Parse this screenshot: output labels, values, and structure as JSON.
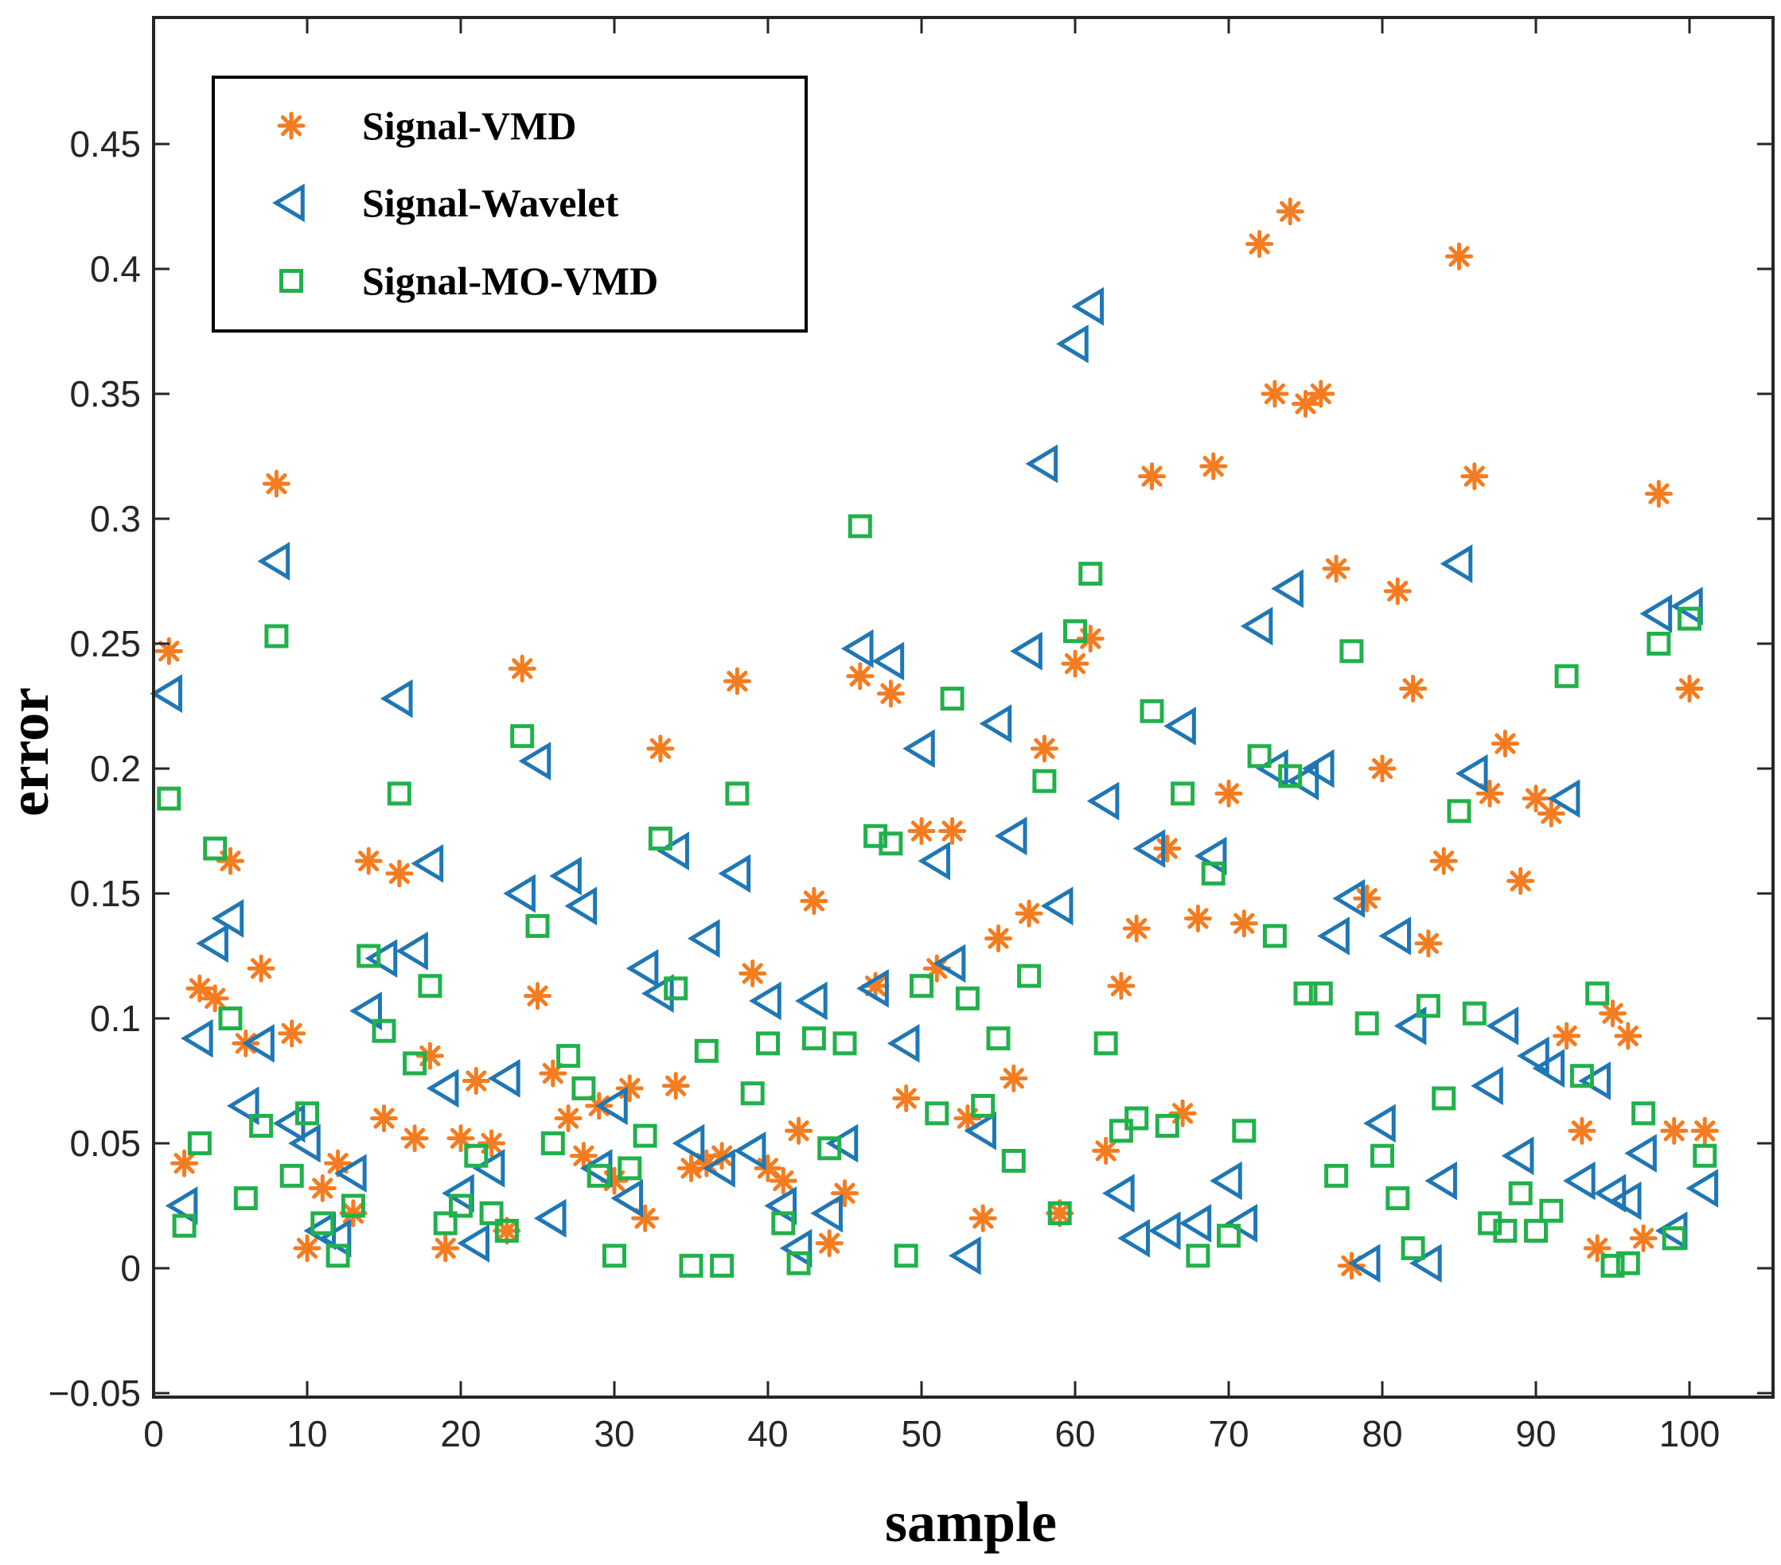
{
  "chart_data": {
    "type": "scatter",
    "title": "",
    "xlabel": "sample",
    "ylabel": "error",
    "xlim": [
      0,
      103
    ],
    "ylim": [
      -0.05,
      0.5
    ],
    "x_ticks": [
      0,
      10,
      20,
      30,
      40,
      50,
      60,
      70,
      80,
      90,
      100
    ],
    "x_tick_labels": [
      "0",
      "10",
      "20",
      "30",
      "40",
      "50",
      "60",
      "70",
      "80",
      "90",
      "100"
    ],
    "y_ticks": [
      -0.05,
      0,
      0.05,
      0.1,
      0.15,
      0.2,
      0.25,
      0.3,
      0.35,
      0.4,
      0.45
    ],
    "y_tick_labels": [
      "−0.05",
      "0",
      "0.05",
      "0.1",
      "0.15",
      "0.2",
      "0.25",
      "0.3",
      "0.35",
      "0.4",
      "0.45"
    ],
    "grid": false,
    "legend_position": "top-left",
    "series": [
      {
        "name": "Signal-VMD",
        "marker": "asterisk",
        "color": "#F47C20",
        "x": [
          1,
          2,
          3,
          4,
          5,
          6,
          7,
          8,
          9,
          10,
          11,
          12,
          13,
          14,
          15,
          16,
          17,
          18,
          19,
          20,
          21,
          22,
          23,
          24,
          25,
          26,
          27,
          28,
          29,
          30,
          31,
          32,
          33,
          34,
          35,
          36,
          37,
          38,
          39,
          40,
          41,
          42,
          43,
          44,
          45,
          46,
          47,
          48,
          49,
          50,
          51,
          52,
          53,
          54,
          55,
          56,
          57,
          58,
          59,
          60,
          61,
          62,
          63,
          64,
          65,
          66,
          67,
          68,
          69,
          70,
          71,
          72,
          73,
          74,
          75,
          76,
          77,
          78,
          79,
          80,
          81,
          82,
          83,
          84,
          85,
          86,
          87,
          88,
          89,
          90,
          91,
          92,
          93,
          94,
          95,
          96,
          97,
          98,
          99,
          100,
          101
        ],
        "y": [
          0.247,
          0.042,
          0.112,
          0.108,
          0.163,
          0.09,
          0.12,
          0.314,
          0.094,
          0.008,
          0.032,
          0.042,
          0.022,
          0.163,
          0.06,
          0.158,
          0.052,
          0.085,
          0.008,
          0.052,
          0.075,
          0.05,
          0.015,
          0.24,
          0.109,
          0.078,
          0.06,
          0.045,
          0.065,
          0.035,
          0.072,
          0.02,
          0.208,
          0.073,
          0.04,
          0.042,
          0.045,
          0.235,
          0.118,
          0.04,
          0.035,
          0.055,
          0.147,
          0.01,
          0.03,
          0.237,
          0.113,
          0.23,
          0.068,
          0.175,
          0.12,
          0.175,
          0.06,
          0.02,
          0.132,
          0.076,
          0.142,
          0.208,
          0.022,
          0.242,
          0.252,
          0.047,
          0.113,
          0.136,
          0.317,
          0.168,
          0.062,
          0.14,
          0.321,
          0.19,
          0.138,
          0.41,
          0.35,
          0.423,
          0.346,
          0.35,
          0.28,
          0.001,
          0.148,
          0.2,
          0.271,
          0.232,
          0.13,
          0.163,
          0.405,
          0.317,
          0.19,
          0.21,
          0.155,
          0.188,
          0.182,
          0.093,
          0.055,
          0.008,
          0.102,
          0.093,
          0.012,
          0.31,
          0.055,
          0.232,
          0.055
        ]
      },
      {
        "name": "Signal-Wavelet",
        "marker": "triangle-left",
        "color": "#1F77B4",
        "x": [
          1,
          2,
          3,
          4,
          5,
          6,
          7,
          8,
          9,
          10,
          11,
          12,
          13,
          14,
          15,
          16,
          17,
          18,
          19,
          20,
          21,
          22,
          23,
          24,
          25,
          26,
          27,
          28,
          29,
          30,
          31,
          32,
          33,
          34,
          35,
          36,
          37,
          38,
          39,
          40,
          41,
          42,
          43,
          44,
          45,
          46,
          47,
          48,
          49,
          50,
          51,
          52,
          53,
          54,
          55,
          56,
          57,
          58,
          59,
          60,
          61,
          62,
          63,
          64,
          65,
          66,
          67,
          68,
          69,
          70,
          71,
          72,
          73,
          74,
          75,
          76,
          77,
          78,
          79,
          80,
          81,
          82,
          83,
          84,
          85,
          86,
          87,
          88,
          89,
          90,
          91,
          92,
          93,
          94,
          95,
          96,
          97,
          98,
          99,
          100,
          101
        ],
        "y": [
          0.23,
          0.025,
          0.092,
          0.13,
          0.14,
          0.065,
          0.09,
          0.283,
          0.058,
          0.05,
          0.015,
          0.012,
          0.038,
          0.103,
          0.124,
          0.228,
          0.127,
          0.162,
          0.072,
          0.03,
          0.01,
          0.04,
          0.076,
          0.15,
          0.203,
          0.02,
          0.157,
          0.145,
          0.04,
          0.065,
          0.028,
          0.12,
          0.11,
          0.167,
          0.05,
          0.132,
          0.04,
          0.158,
          0.047,
          0.107,
          0.025,
          0.008,
          0.107,
          0.022,
          0.05,
          0.248,
          0.112,
          0.243,
          0.09,
          0.208,
          0.163,
          0.122,
          0.005,
          0.055,
          0.218,
          0.173,
          0.247,
          0.322,
          0.145,
          0.37,
          0.385,
          0.187,
          0.03,
          0.012,
          0.168,
          0.015,
          0.217,
          0.018,
          0.165,
          0.035,
          0.018,
          0.257,
          0.2,
          0.272,
          0.195,
          0.2,
          0.133,
          0.148,
          0.002,
          0.058,
          0.133,
          0.097,
          0.002,
          0.035,
          0.282,
          0.198,
          0.073,
          0.097,
          0.045,
          0.085,
          0.08,
          0.188,
          0.035,
          0.075,
          0.03,
          0.027,
          0.046,
          0.262,
          0.015,
          0.265,
          0.032
        ]
      },
      {
        "name": "Signal-MO-VMD",
        "marker": "square",
        "color": "#21B14B",
        "x": [
          1,
          2,
          3,
          4,
          5,
          6,
          7,
          8,
          9,
          10,
          11,
          12,
          13,
          14,
          15,
          16,
          17,
          18,
          19,
          20,
          21,
          22,
          23,
          24,
          25,
          26,
          27,
          28,
          29,
          30,
          31,
          32,
          33,
          34,
          35,
          36,
          37,
          38,
          39,
          40,
          41,
          42,
          43,
          44,
          45,
          46,
          47,
          48,
          49,
          50,
          51,
          52,
          53,
          54,
          55,
          56,
          57,
          58,
          59,
          60,
          61,
          62,
          63,
          64,
          65,
          66,
          67,
          68,
          69,
          70,
          71,
          72,
          73,
          74,
          75,
          76,
          77,
          78,
          79,
          80,
          81,
          82,
          83,
          84,
          85,
          86,
          87,
          88,
          89,
          90,
          91,
          92,
          93,
          94,
          95,
          96,
          97,
          98,
          99,
          100,
          101
        ],
        "y": [
          0.188,
          0.017,
          0.05,
          0.168,
          0.1,
          0.028,
          0.057,
          0.253,
          0.037,
          0.062,
          0.018,
          0.005,
          0.025,
          0.125,
          0.095,
          0.19,
          0.082,
          0.113,
          0.018,
          0.025,
          0.045,
          0.022,
          0.015,
          0.213,
          0.137,
          0.05,
          0.085,
          0.072,
          0.037,
          0.005,
          0.04,
          0.053,
          0.172,
          0.112,
          0.001,
          0.087,
          0.001,
          0.19,
          0.07,
          0.09,
          0.018,
          0.002,
          0.092,
          0.048,
          0.09,
          0.297,
          0.173,
          0.17,
          0.005,
          0.113,
          0.062,
          0.228,
          0.108,
          0.065,
          0.092,
          0.043,
          0.117,
          0.195,
          0.022,
          0.255,
          0.278,
          0.09,
          0.055,
          0.06,
          0.223,
          0.057,
          0.19,
          0.005,
          0.158,
          0.013,
          0.055,
          0.205,
          0.133,
          0.197,
          0.11,
          0.11,
          0.037,
          0.247,
          0.098,
          0.045,
          0.028,
          0.008,
          0.105,
          0.068,
          0.183,
          0.102,
          0.018,
          0.015,
          0.03,
          0.015,
          0.023,
          0.237,
          0.077,
          0.11,
          0.001,
          0.002,
          0.062,
          0.25,
          0.012,
          0.26,
          0.045
        ]
      }
    ]
  }
}
